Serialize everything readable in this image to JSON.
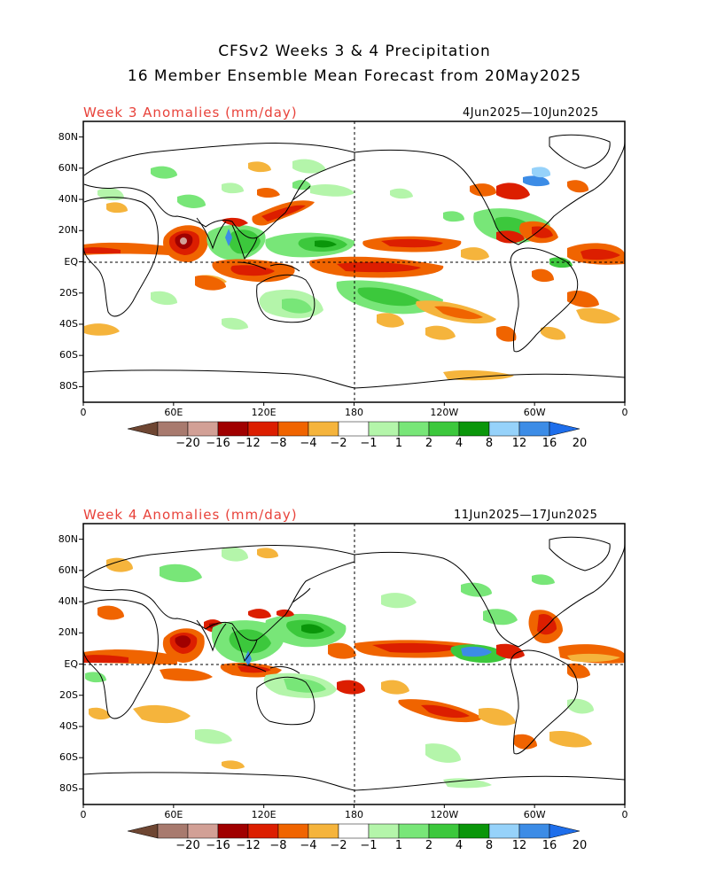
{
  "header": {
    "title_line1": "CFSv2 Weeks 3 & 4 Precipitation",
    "title_line2": "16 Member Ensemble Mean Forecast from 20May2025"
  },
  "panels": [
    {
      "title": "Week 3 Anomalies (mm/day)",
      "date_range": "4Jun2025—10Jun2025"
    },
    {
      "title": "Week 4 Anomalies (mm/day)",
      "date_range": "11Jun2025—17Jun2025"
    }
  ],
  "axes": {
    "lat_labels": [
      "80N",
      "60N",
      "40N",
      "20N",
      "EQ",
      "20S",
      "40S",
      "60S",
      "80S"
    ],
    "lon_labels": [
      "0",
      "60E",
      "120E",
      "180",
      "120W",
      "60W",
      "0"
    ]
  },
  "colorbar": {
    "labels": [
      "−20",
      "−16",
      "−12",
      "−8",
      "−4",
      "−2",
      "−1",
      "1",
      "2",
      "4",
      "8",
      "12",
      "16",
      "20"
    ],
    "colors": [
      "#6e4632",
      "#a87a6e",
      "#d2a096",
      "#a00000",
      "#dc1e00",
      "#f06400",
      "#f5b43c",
      "#ffffff",
      "#b4f5aa",
      "#78e678",
      "#3cc83c",
      "#0a960a",
      "#96d2fa",
      "#3c8ce6",
      "#1e6eeb"
    ]
  }
}
